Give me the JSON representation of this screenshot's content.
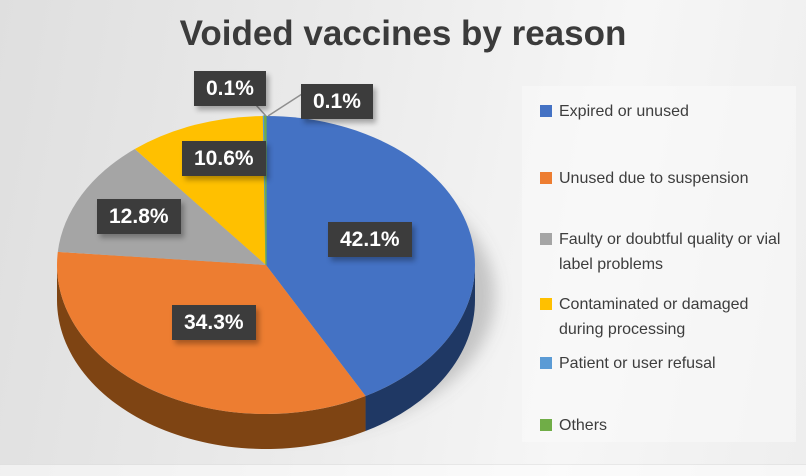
{
  "chart_data": {
    "type": "pie",
    "style": "3d-pie",
    "title": "Voided vaccines by reason",
    "categories": [
      "Expired or unused",
      "Unused due to suspension",
      "Faulty or doubtful quality or vial label problems",
      "Contaminated or damaged during processing",
      "Patient or user refusal",
      "Others"
    ],
    "values": [
      42.1,
      34.3,
      12.8,
      10.6,
      0.1,
      0.1
    ],
    "unit": "%",
    "data_labels": [
      "42.1%",
      "34.3%",
      "12.8%",
      "10.6%",
      "0.1%",
      "0.1%"
    ],
    "colors": [
      "#4472C4",
      "#ED7D31",
      "#A5A5A5",
      "#FFC000",
      "#5B9BD5",
      "#70AD47"
    ],
    "side_colors": [
      "#1F3864",
      "#7E4413",
      "#787878",
      "#9E7700",
      "#2E6DA4",
      "#4E7A31"
    ],
    "label_box_bg": "#3C3C3C",
    "label_text_color": "#FFFFFF",
    "start_angle_deg": 0,
    "direction": "clockwise",
    "legend_position": "right"
  }
}
